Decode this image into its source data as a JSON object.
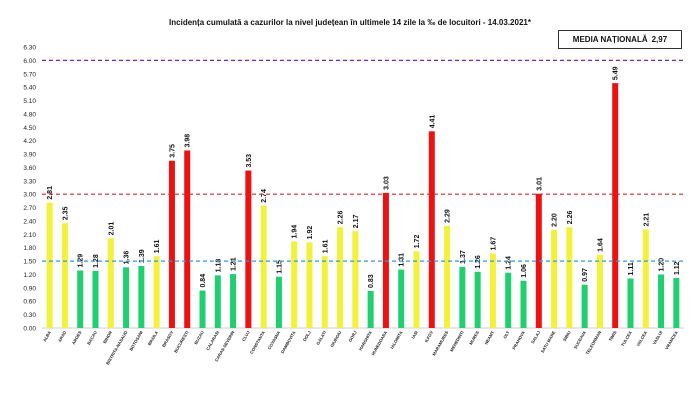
{
  "title": "Incidența cumulată a cazurilor la nivel județean în ultimele 14 zile la ‰ de locuitori - 14.03.2021*",
  "media_label": "MEDIA NAȚIONALĂ",
  "media_value": "2,97",
  "colors": {
    "red": "#ee1111",
    "yellow": "#f2f23a",
    "green": "#1fcf70",
    "purple_line": "#7a2a9a",
    "red_line": "#d42a2a",
    "blue_line": "#3399dd"
  },
  "chart_data": {
    "type": "bar",
    "title": "Incidența cumulată a cazurilor la nivel județean în ultimele 14 zile la ‰ de locuitori - 14.03.2021*",
    "ylim": [
      0,
      6.3
    ],
    "yticks": [
      "0.00",
      "0.30",
      "0.60",
      "0.90",
      "1.20",
      "1.50",
      "1.80",
      "2.10",
      "2.40",
      "2.70",
      "3.00",
      "3.30",
      "3.60",
      "3.90",
      "4.20",
      "4.50",
      "4.80",
      "5.10",
      "5.40",
      "5.70",
      "6.00",
      "6.30"
    ],
    "grid": false,
    "reference_lines": [
      6.0,
      3.0,
      1.5
    ],
    "categories": [
      "ALBA",
      "ARAD",
      "ARGES",
      "BACAU",
      "BIHOR",
      "BISTRITA-NASAUD",
      "BOTOSANI",
      "BRAILA",
      "BRASOV",
      "BUCURESTI",
      "BUZAU",
      "CALARASI",
      "CARAS-SEVERIN",
      "CLUJ",
      "CONSTANTA",
      "COVASNA",
      "DAMBOVITA",
      "DOLJ",
      "GALATI",
      "GIURGIU",
      "GORJ",
      "HARGHITA",
      "HUNEDOARA",
      "IALOMITA",
      "IASI",
      "ILFOV",
      "MARAMURES",
      "MEHEDINTI",
      "MURES",
      "NEAMT",
      "OLT",
      "PRAHOVA",
      "SALAJ",
      "SATU MARE",
      "SIBIU",
      "SUCEAVA",
      "TELEORMAN",
      "TIMIS",
      "TULCEA",
      "VALCEA",
      "VASLUI",
      "VRANCEA"
    ],
    "values": [
      2.81,
      2.35,
      1.29,
      1.28,
      2.01,
      1.36,
      1.39,
      1.61,
      3.75,
      3.98,
      0.84,
      1.18,
      1.21,
      3.53,
      2.74,
      1.15,
      1.94,
      1.92,
      1.61,
      2.26,
      2.17,
      0.83,
      3.03,
      1.31,
      1.72,
      4.41,
      2.29,
      1.37,
      1.26,
      1.67,
      1.24,
      1.06,
      3.01,
      2.2,
      2.26,
      0.97,
      1.64,
      5.49,
      1.11,
      2.21,
      1.2,
      1.12
    ],
    "labels": [
      "2.81",
      "2.35",
      "1.29",
      "1.28",
      "2.01",
      "1.36",
      "1.39",
      "1.61",
      "3.75",
      "3.98",
      "0.84",
      "1.18",
      "1.21",
      "3.53",
      "2.74",
      "1.15",
      "1.94",
      "1.92",
      "1.61",
      "2.26",
      "2.17",
      "0.83",
      "3.03",
      "1.31",
      "1.72",
      "4.41",
      "2.29",
      "1.37",
      "1.26",
      "1.67",
      "1.24",
      "1.06",
      "3.01",
      "2.20",
      "2.26",
      "0.97",
      "1.64",
      "5.49",
      "1.11",
      "2.21",
      "1.20",
      "1.12"
    ]
  }
}
